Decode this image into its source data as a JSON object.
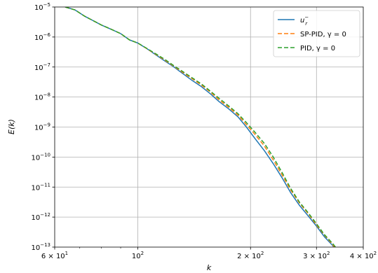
{
  "chart_data": {
    "type": "line",
    "xlabel": "k",
    "ylabel": "E(k)",
    "xscale": "log",
    "yscale": "log",
    "xlim": [
      60,
      400
    ],
    "ylim": [
      1e-13,
      1e-05
    ],
    "grid": true,
    "legend_placement": "top-right",
    "x_ticks": [
      {
        "value": 60,
        "mantissa": "6 × 10",
        "exp": "1"
      },
      {
        "value": 100,
        "mantissa": "10",
        "exp": "2"
      },
      {
        "value": 200,
        "mantissa": "2 × 10",
        "exp": "2"
      },
      {
        "value": 300,
        "mantissa": "3 × 10",
        "exp": "2"
      },
      {
        "value": 400,
        "mantissa": "4 × 10",
        "exp": "2"
      }
    ],
    "y_ticks": [
      {
        "value": 1e-13,
        "mantissa": "10",
        "exp": "−13"
      },
      {
        "value": 1e-12,
        "mantissa": "10",
        "exp": "−12"
      },
      {
        "value": 1e-11,
        "mantissa": "10",
        "exp": "−11"
      },
      {
        "value": 1e-10,
        "mantissa": "10",
        "exp": "−10"
      },
      {
        "value": 1e-09,
        "mantissa": "10",
        "exp": "−9"
      },
      {
        "value": 1e-08,
        "mantissa": "10",
        "exp": "−8"
      },
      {
        "value": 1e-07,
        "mantissa": "10",
        "exp": "−7"
      },
      {
        "value": 1e-06,
        "mantissa": "10",
        "exp": "−6"
      },
      {
        "value": 1e-05,
        "mantissa": "10",
        "exp": "−5"
      }
    ],
    "series": [
      {
        "name": "u_r^-",
        "legend_base": "u",
        "legend_sub": "r",
        "legend_sup": "−",
        "color": "#1f77b4",
        "dash": "solid",
        "x": [
          64,
          68,
          72,
          76,
          80,
          85,
          90,
          95,
          100,
          106,
          112,
          118,
          125,
          132,
          140,
          148,
          156,
          165,
          175,
          185,
          195,
          206,
          218,
          230,
          243,
          256,
          270,
          285,
          300,
          315,
          330,
          345
        ],
        "y": [
          1e-05,
          8e-06,
          5e-06,
          3.5e-06,
          2.5e-06,
          1.8e-06,
          1.3e-06,
          8e-07,
          6.3e-07,
          4e-07,
          2.5e-07,
          1.6e-07,
          1e-07,
          6e-08,
          3.5e-08,
          2.2e-08,
          1.3e-08,
          7e-09,
          4e-09,
          2.2e-09,
          1e-09,
          4e-10,
          1.6e-10,
          6e-11,
          2e-11,
          6.5e-12,
          2.5e-12,
          1.1e-12,
          5e-13,
          2.2e-13,
          1.2e-13,
          6e-14
        ]
      },
      {
        "name": "SP-PID, γ = 0",
        "legend_text": "SP-PID, γ = 0",
        "color": "#ff7f0e",
        "dash": "6,3",
        "x": [
          64,
          68,
          72,
          76,
          80,
          85,
          90,
          95,
          100,
          106,
          112,
          118,
          125,
          132,
          140,
          148,
          156,
          165,
          175,
          185,
          195,
          206,
          218,
          230,
          243,
          256,
          270,
          285,
          300,
          315,
          330,
          345
        ],
        "y": [
          1e-05,
          8e-06,
          5e-06,
          3.5e-06,
          2.5e-06,
          1.8e-06,
          1.3e-06,
          8e-07,
          6.3e-07,
          4e-07,
          2.6e-07,
          1.7e-07,
          1.05e-07,
          6.5e-08,
          4e-08,
          2.5e-08,
          1.5e-08,
          8e-09,
          4.5e-09,
          2.5e-09,
          1.2e-09,
          5.5e-10,
          2.3e-10,
          8e-11,
          2.5e-11,
          8e-12,
          3e-12,
          1.3e-12,
          5.5e-13,
          2.5e-13,
          1.3e-13,
          6e-14
        ]
      },
      {
        "name": "PID, γ = 0",
        "legend_text": "PID, γ = 0",
        "color": "#2ca02c",
        "dash": "6,3",
        "x": [
          64,
          68,
          72,
          76,
          80,
          85,
          90,
          95,
          100,
          106,
          112,
          118,
          125,
          132,
          140,
          148,
          156,
          165,
          175,
          185,
          195,
          206,
          218,
          230,
          243,
          256,
          270,
          285,
          300,
          315,
          330,
          345
        ],
        "y": [
          1e-05,
          8e-06,
          5e-06,
          3.5e-06,
          2.5e-06,
          1.8e-06,
          1.3e-06,
          8e-07,
          6.3e-07,
          4.1e-07,
          2.7e-07,
          1.8e-07,
          1.1e-07,
          7e-08,
          4.3e-08,
          2.7e-08,
          1.6e-08,
          9e-09,
          5e-09,
          2.8e-09,
          1.4e-09,
          6.5e-10,
          2.8e-10,
          1e-10,
          3e-11,
          9e-12,
          3.2e-12,
          1.4e-12,
          6e-13,
          2.6e-13,
          1.4e-13,
          7e-14
        ]
      }
    ]
  }
}
